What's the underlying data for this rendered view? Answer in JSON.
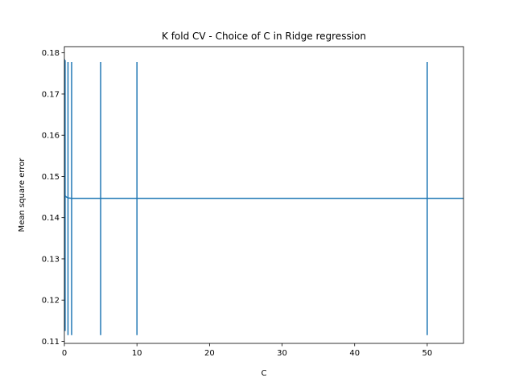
{
  "chart_data": {
    "type": "line",
    "title": "K fold CV - Choice of C in Ridge regression",
    "xlabel": "C",
    "ylabel": "Mean square error",
    "xlim": [
      0,
      55
    ],
    "ylim": [
      0.1095,
      0.1815
    ],
    "x_ticks": [
      0,
      10,
      20,
      30,
      40,
      50
    ],
    "x_tick_labels": [
      "0",
      "10",
      "20",
      "30",
      "40",
      "50"
    ],
    "y_ticks": [
      0.11,
      0.12,
      0.13,
      0.14,
      0.15,
      0.16,
      0.17,
      0.18
    ],
    "y_tick_labels": [
      "0.11",
      "0.12",
      "0.13",
      "0.14",
      "0.15",
      "0.16",
      "0.17",
      "0.18"
    ],
    "grid": false,
    "legend": false,
    "series": [
      {
        "x": [
          0.001,
          0.01,
          0.1,
          0.2,
          0.5,
          1,
          5,
          10,
          50,
          100
        ],
        "y": [
          0.1455,
          0.1455,
          0.1453,
          0.1451,
          0.1448,
          0.1447,
          0.1447,
          0.1447,
          0.1447,
          0.1447
        ],
        "color": "#1f77b4"
      }
    ],
    "error_bars": [
      {
        "x": 0.001,
        "low": 0.1135,
        "high": 0.1785
      },
      {
        "x": 0.01,
        "low": 0.1134,
        "high": 0.1784
      },
      {
        "x": 0.1,
        "low": 0.1125,
        "high": 0.1782
      },
      {
        "x": 0.5,
        "low": 0.1115,
        "high": 0.1778
      },
      {
        "x": 1,
        "low": 0.1115,
        "high": 0.1778
      },
      {
        "x": 5,
        "low": 0.1115,
        "high": 0.1778
      },
      {
        "x": 10,
        "low": 0.1115,
        "high": 0.1778
      },
      {
        "x": 50,
        "low": 0.1115,
        "high": 0.1778
      }
    ],
    "colors": {
      "line": "#1f77b4",
      "axes": "#000000",
      "background": "#ffffff"
    }
  }
}
